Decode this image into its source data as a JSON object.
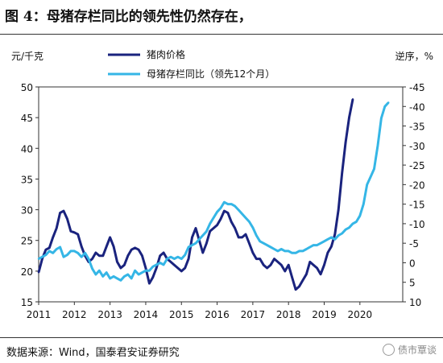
{
  "figure_title": "图 4：母猪存栏同比的领先性仍然存在，",
  "source_note": "数据来源：Wind，国泰君安证券研究",
  "watermark": "债市覃谈",
  "colors": {
    "pork_price": "#1a237e",
    "sow_inventory": "#35b6e6"
  },
  "chart_data": {
    "type": "line",
    "left_axis": {
      "unit_label": "元/千克",
      "ylim": [
        15,
        50
      ],
      "ticks": [
        15,
        20,
        25,
        30,
        35,
        40,
        45,
        50
      ]
    },
    "right_axis": {
      "unit_label": "逆序，%",
      "ylim": [
        10,
        -45
      ],
      "reversed": true,
      "ticks": [
        "-45",
        "-40",
        "-35",
        "-30",
        "-25",
        "-20",
        "-15",
        "-10",
        "-5",
        "0",
        "5",
        "10"
      ]
    },
    "x_ticks": [
      "2011",
      "2012",
      "2013",
      "2014",
      "2015",
      "2016",
      "2017",
      "2018",
      "2019",
      "2020"
    ],
    "x_range": [
      2011.0,
      2021.2
    ],
    "legend_placement": "top-center",
    "series": [
      {
        "name": "猪肉价格",
        "axis": "left",
        "color_key": "pork_price",
        "x": [
          2011.0,
          2011.1,
          2011.2,
          2011.3,
          2011.4,
          2011.5,
          2011.6,
          2011.7,
          2011.8,
          2011.9,
          2012.0,
          2012.1,
          2012.2,
          2012.3,
          2012.4,
          2012.5,
          2012.6,
          2012.7,
          2012.8,
          2012.9,
          2013.0,
          2013.1,
          2013.2,
          2013.3,
          2013.4,
          2013.5,
          2013.6,
          2013.7,
          2013.8,
          2013.9,
          2014.0,
          2014.1,
          2014.2,
          2014.3,
          2014.4,
          2014.5,
          2014.6,
          2014.7,
          2014.8,
          2014.9,
          2015.0,
          2015.1,
          2015.2,
          2015.3,
          2015.4,
          2015.5,
          2015.6,
          2015.7,
          2015.8,
          2015.9,
          2016.0,
          2016.1,
          2016.2,
          2016.3,
          2016.4,
          2016.5,
          2016.6,
          2016.7,
          2016.8,
          2016.9,
          2017.0,
          2017.1,
          2017.2,
          2017.3,
          2017.4,
          2017.5,
          2017.6,
          2017.7,
          2017.8,
          2017.9,
          2018.0,
          2018.1,
          2018.2,
          2018.3,
          2018.4,
          2018.5,
          2018.6,
          2018.7,
          2018.8,
          2018.9,
          2019.0,
          2019.1,
          2019.2,
          2019.3,
          2019.4,
          2019.5,
          2019.6,
          2019.7,
          2019.8
        ],
        "values": [
          19.8,
          22.0,
          23.5,
          23.8,
          25.5,
          27.0,
          29.5,
          29.8,
          28.5,
          26.5,
          26.3,
          26.0,
          24.0,
          22.5,
          21.5,
          22.0,
          23.0,
          22.5,
          22.5,
          24.0,
          25.5,
          24.0,
          21.5,
          20.5,
          21.0,
          22.5,
          23.5,
          23.8,
          23.5,
          22.5,
          20.5,
          18.0,
          19.0,
          20.5,
          22.5,
          23.0,
          22.0,
          21.5,
          21.0,
          20.5,
          20.0,
          20.5,
          22.0,
          25.5,
          27.0,
          25.0,
          23.0,
          24.5,
          26.5,
          27.0,
          27.5,
          28.5,
          29.8,
          29.5,
          28.0,
          27.0,
          25.5,
          25.5,
          26.0,
          24.5,
          23.0,
          22.0,
          22.0,
          21.0,
          20.5,
          21.0,
          22.0,
          21.5,
          21.0,
          20.0,
          21.0,
          19.0,
          17.0,
          17.5,
          18.5,
          19.5,
          21.5,
          21.0,
          20.5,
          19.5,
          21.0,
          23.0,
          24.0,
          26.0,
          30.0,
          36.0,
          41.0,
          45.0,
          48.0
        ]
      },
      {
        "name": "母猪存栏同比（领先12个月）",
        "axis": "right",
        "color_key": "sow_inventory",
        "x": [
          2011.0,
          2011.1,
          2011.2,
          2011.3,
          2011.4,
          2011.5,
          2011.6,
          2011.7,
          2011.8,
          2011.9,
          2012.0,
          2012.1,
          2012.2,
          2012.3,
          2012.4,
          2012.5,
          2012.6,
          2012.7,
          2012.8,
          2012.9,
          2013.0,
          2013.1,
          2013.2,
          2013.3,
          2013.4,
          2013.5,
          2013.6,
          2013.7,
          2013.8,
          2013.9,
          2014.0,
          2014.1,
          2014.2,
          2014.3,
          2014.4,
          2014.5,
          2014.6,
          2014.7,
          2014.8,
          2014.9,
          2015.0,
          2015.1,
          2015.2,
          2015.3,
          2015.4,
          2015.5,
          2015.6,
          2015.7,
          2015.8,
          2015.9,
          2016.0,
          2016.1,
          2016.2,
          2016.3,
          2016.4,
          2016.5,
          2016.6,
          2016.7,
          2016.8,
          2016.9,
          2017.0,
          2017.1,
          2017.2,
          2017.3,
          2017.4,
          2017.5,
          2017.6,
          2017.7,
          2017.8,
          2017.9,
          2018.0,
          2018.1,
          2018.2,
          2018.3,
          2018.4,
          2018.5,
          2018.6,
          2018.7,
          2018.8,
          2018.9,
          2019.0,
          2019.1,
          2019.2,
          2019.3,
          2019.4,
          2019.5,
          2019.6,
          2019.7,
          2019.8,
          2019.9,
          2020.0,
          2020.1,
          2020.2,
          2020.3,
          2020.4,
          2020.5,
          2020.6,
          2020.7,
          2020.8
        ],
        "values": [
          -1.0,
          -1.5,
          -2.0,
          -3.0,
          -2.5,
          -3.5,
          -4.0,
          -1.5,
          -2.0,
          -3.0,
          -3.0,
          -2.5,
          -1.5,
          -2.5,
          -1.0,
          1.5,
          3.0,
          2.0,
          3.5,
          2.5,
          4.0,
          3.5,
          4.0,
          4.5,
          3.5,
          3.0,
          4.0,
          2.0,
          3.0,
          2.5,
          2.0,
          2.0,
          1.0,
          0.5,
          0.0,
          0.5,
          -1.0,
          -1.5,
          -1.0,
          -1.5,
          -1.0,
          -2.0,
          -4.0,
          -4.5,
          -5.0,
          -6.0,
          -7.0,
          -8.0,
          -10.0,
          -11.5,
          -13.0,
          -14.0,
          -15.5,
          -15.0,
          -15.0,
          -14.5,
          -13.5,
          -12.5,
          -11.5,
          -10.5,
          -9.0,
          -7.0,
          -5.5,
          -5.0,
          -4.5,
          -4.0,
          -3.5,
          -3.0,
          -3.5,
          -3.0,
          -3.0,
          -2.5,
          -2.5,
          -3.0,
          -3.0,
          -3.5,
          -4.0,
          -4.5,
          -4.5,
          -5.0,
          -5.5,
          -6.0,
          -6.5,
          -6.0,
          -7.0,
          -7.5,
          -8.5,
          -9.0,
          -10.0,
          -10.5,
          -12.0,
          -15.0,
          -20.0,
          -22.0,
          -24.0,
          -30.0,
          -37.0,
          -40.0,
          -41.0
        ]
      }
    ]
  }
}
